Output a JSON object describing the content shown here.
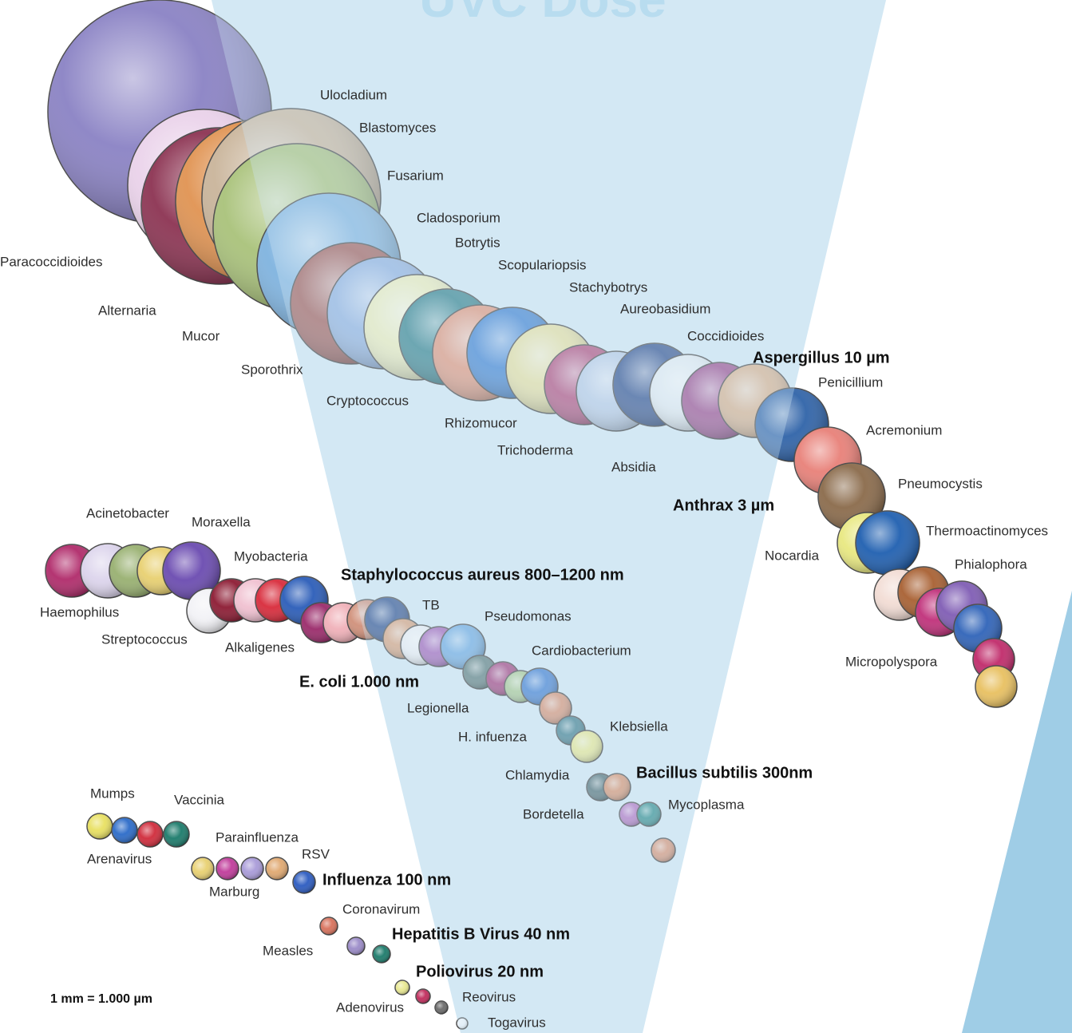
{
  "title": "UVC Dose",
  "organisms": [
    "Ulocladium",
    "Blastomyces",
    "Fusarium",
    "Cladosporium",
    "Botrytis",
    "Scopulariopsis",
    "Stachybotrys",
    "Aureobasidium",
    "Coccidioides",
    "Penicillium",
    "Acremonium",
    "Pneumocystis",
    "Thermoactinomyces",
    "Nocardia",
    "Phialophora",
    "Micropolyspora",
    "Paracoccidioides",
    "Alternaria",
    "Mucor",
    "Sporothrix",
    "Cryptococcus",
    "Rhizomucor",
    "Trichoderma",
    "Absidia",
    "Acinetobacter",
    "Moraxella",
    "Myobacteria",
    "Haemophilus",
    "TB",
    "Pseudomonas",
    "Streptococcus",
    "Alkaligenes",
    "Cardiobacterium",
    "Legionella",
    "Klebsiella",
    "H. infuenza",
    "Chlamydia",
    "Mycoplasma",
    "Bordetella",
    "Mumps",
    "Vaccinia",
    "Parainfluenza",
    "RSV",
    "Arenavirus",
    "Marburg",
    "Coronavirum",
    "Measles",
    "Reovirus",
    "Adenovirus",
    "Togavirus"
  ],
  "highlights": [
    "Aspergillus 10 µm",
    "Anthrax 3 µm",
    "Staphylococcus aureus 800–1200 nm",
    "E. coli 1.000 nm",
    "Bacillus subtilis 300nm",
    "Influenza 100 nm",
    "Hepatitis B Virus 40 nm",
    "Poliovirus 20 nm"
  ],
  "scale_note": "1 mm = 1.000 µm"
}
